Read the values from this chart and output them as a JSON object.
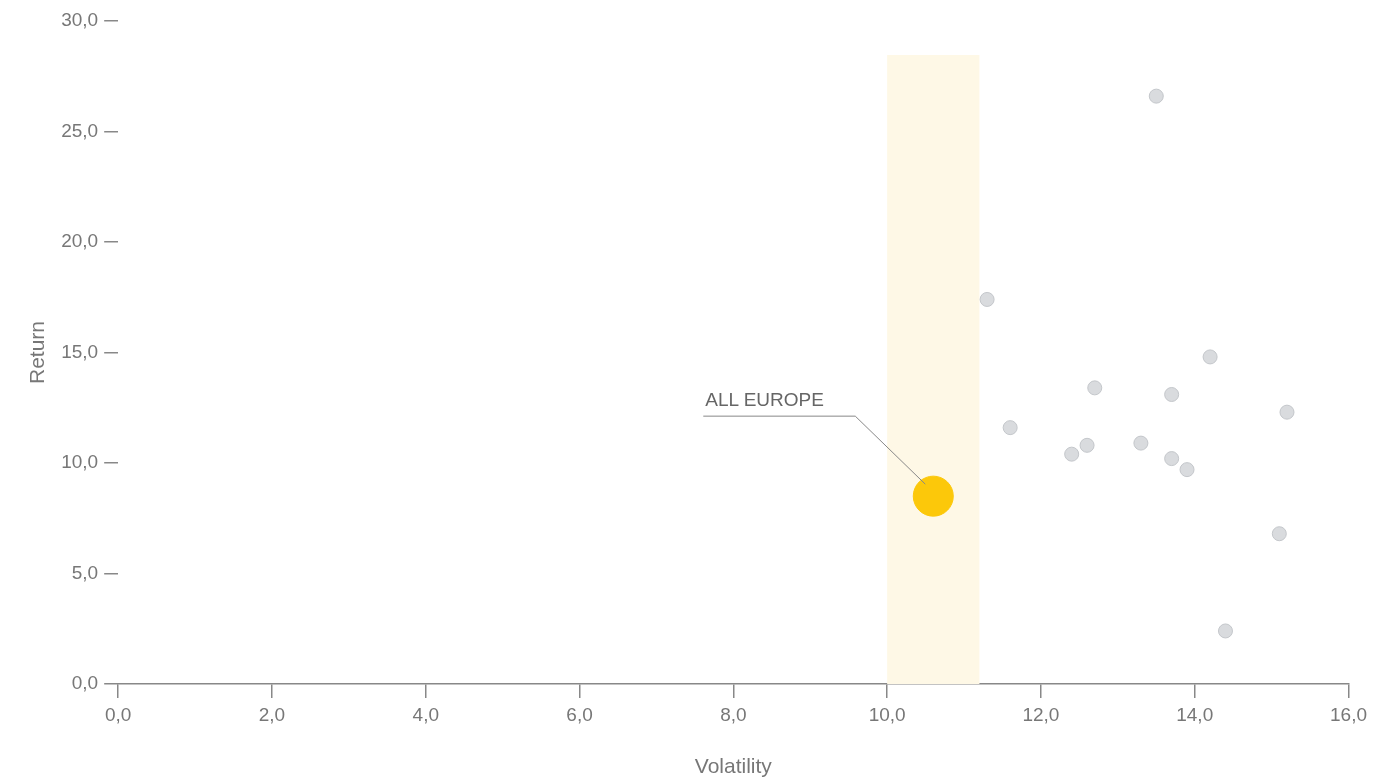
{
  "chart_data": {
    "type": "scatter",
    "xlabel": "Volatility",
    "ylabel": "Return",
    "xlim": [
      0,
      16
    ],
    "xticks": [
      {
        "value": 0,
        "label": "0,0"
      },
      {
        "value": 2,
        "label": "2,0"
      },
      {
        "value": 4,
        "label": "4,0"
      },
      {
        "value": 6,
        "label": "6,0"
      },
      {
        "value": 8,
        "label": "8,0"
      },
      {
        "value": 10,
        "label": "10,0"
      },
      {
        "value": 12,
        "label": "12,0"
      },
      {
        "value": 14,
        "label": "14,0"
      },
      {
        "value": 16,
        "label": "16,0"
      }
    ],
    "ylim": [
      0,
      30
    ],
    "yticks": [
      {
        "value": 0,
        "label": "0,0"
      },
      {
        "value": 5,
        "label": "5,0"
      },
      {
        "value": 10,
        "label": "10,0"
      },
      {
        "value": 15,
        "label": "15,0"
      },
      {
        "value": 20,
        "label": "20,0"
      },
      {
        "value": 25,
        "label": "25,0"
      },
      {
        "value": 30,
        "label": "30,0"
      }
    ],
    "grid": false,
    "legend": false,
    "marker": "circle",
    "series": [
      {
        "color": "#d9dbde",
        "x": [
          11.3,
          13.5,
          11.6,
          12.4,
          12.6,
          12.7,
          13.3,
          13.7,
          13.7,
          13.9,
          14.2,
          15.2,
          15.1,
          14.4
        ],
        "values": [
          17.4,
          26.6,
          11.6,
          10.4,
          10.8,
          13.4,
          10.9,
          13.1,
          10.2,
          9.7,
          14.8,
          12.3,
          6.8,
          2.4
        ]
      },
      {
        "color": "#fcc80a",
        "x": [
          10.6
        ],
        "values": [
          8.5
        ]
      }
    ],
    "bands": [
      {
        "axis": "x",
        "from": 10.0,
        "to": 11.2,
        "color": "#fef8e6"
      }
    ],
    "annotations": [
      "ALL EUROPE"
    ]
  }
}
